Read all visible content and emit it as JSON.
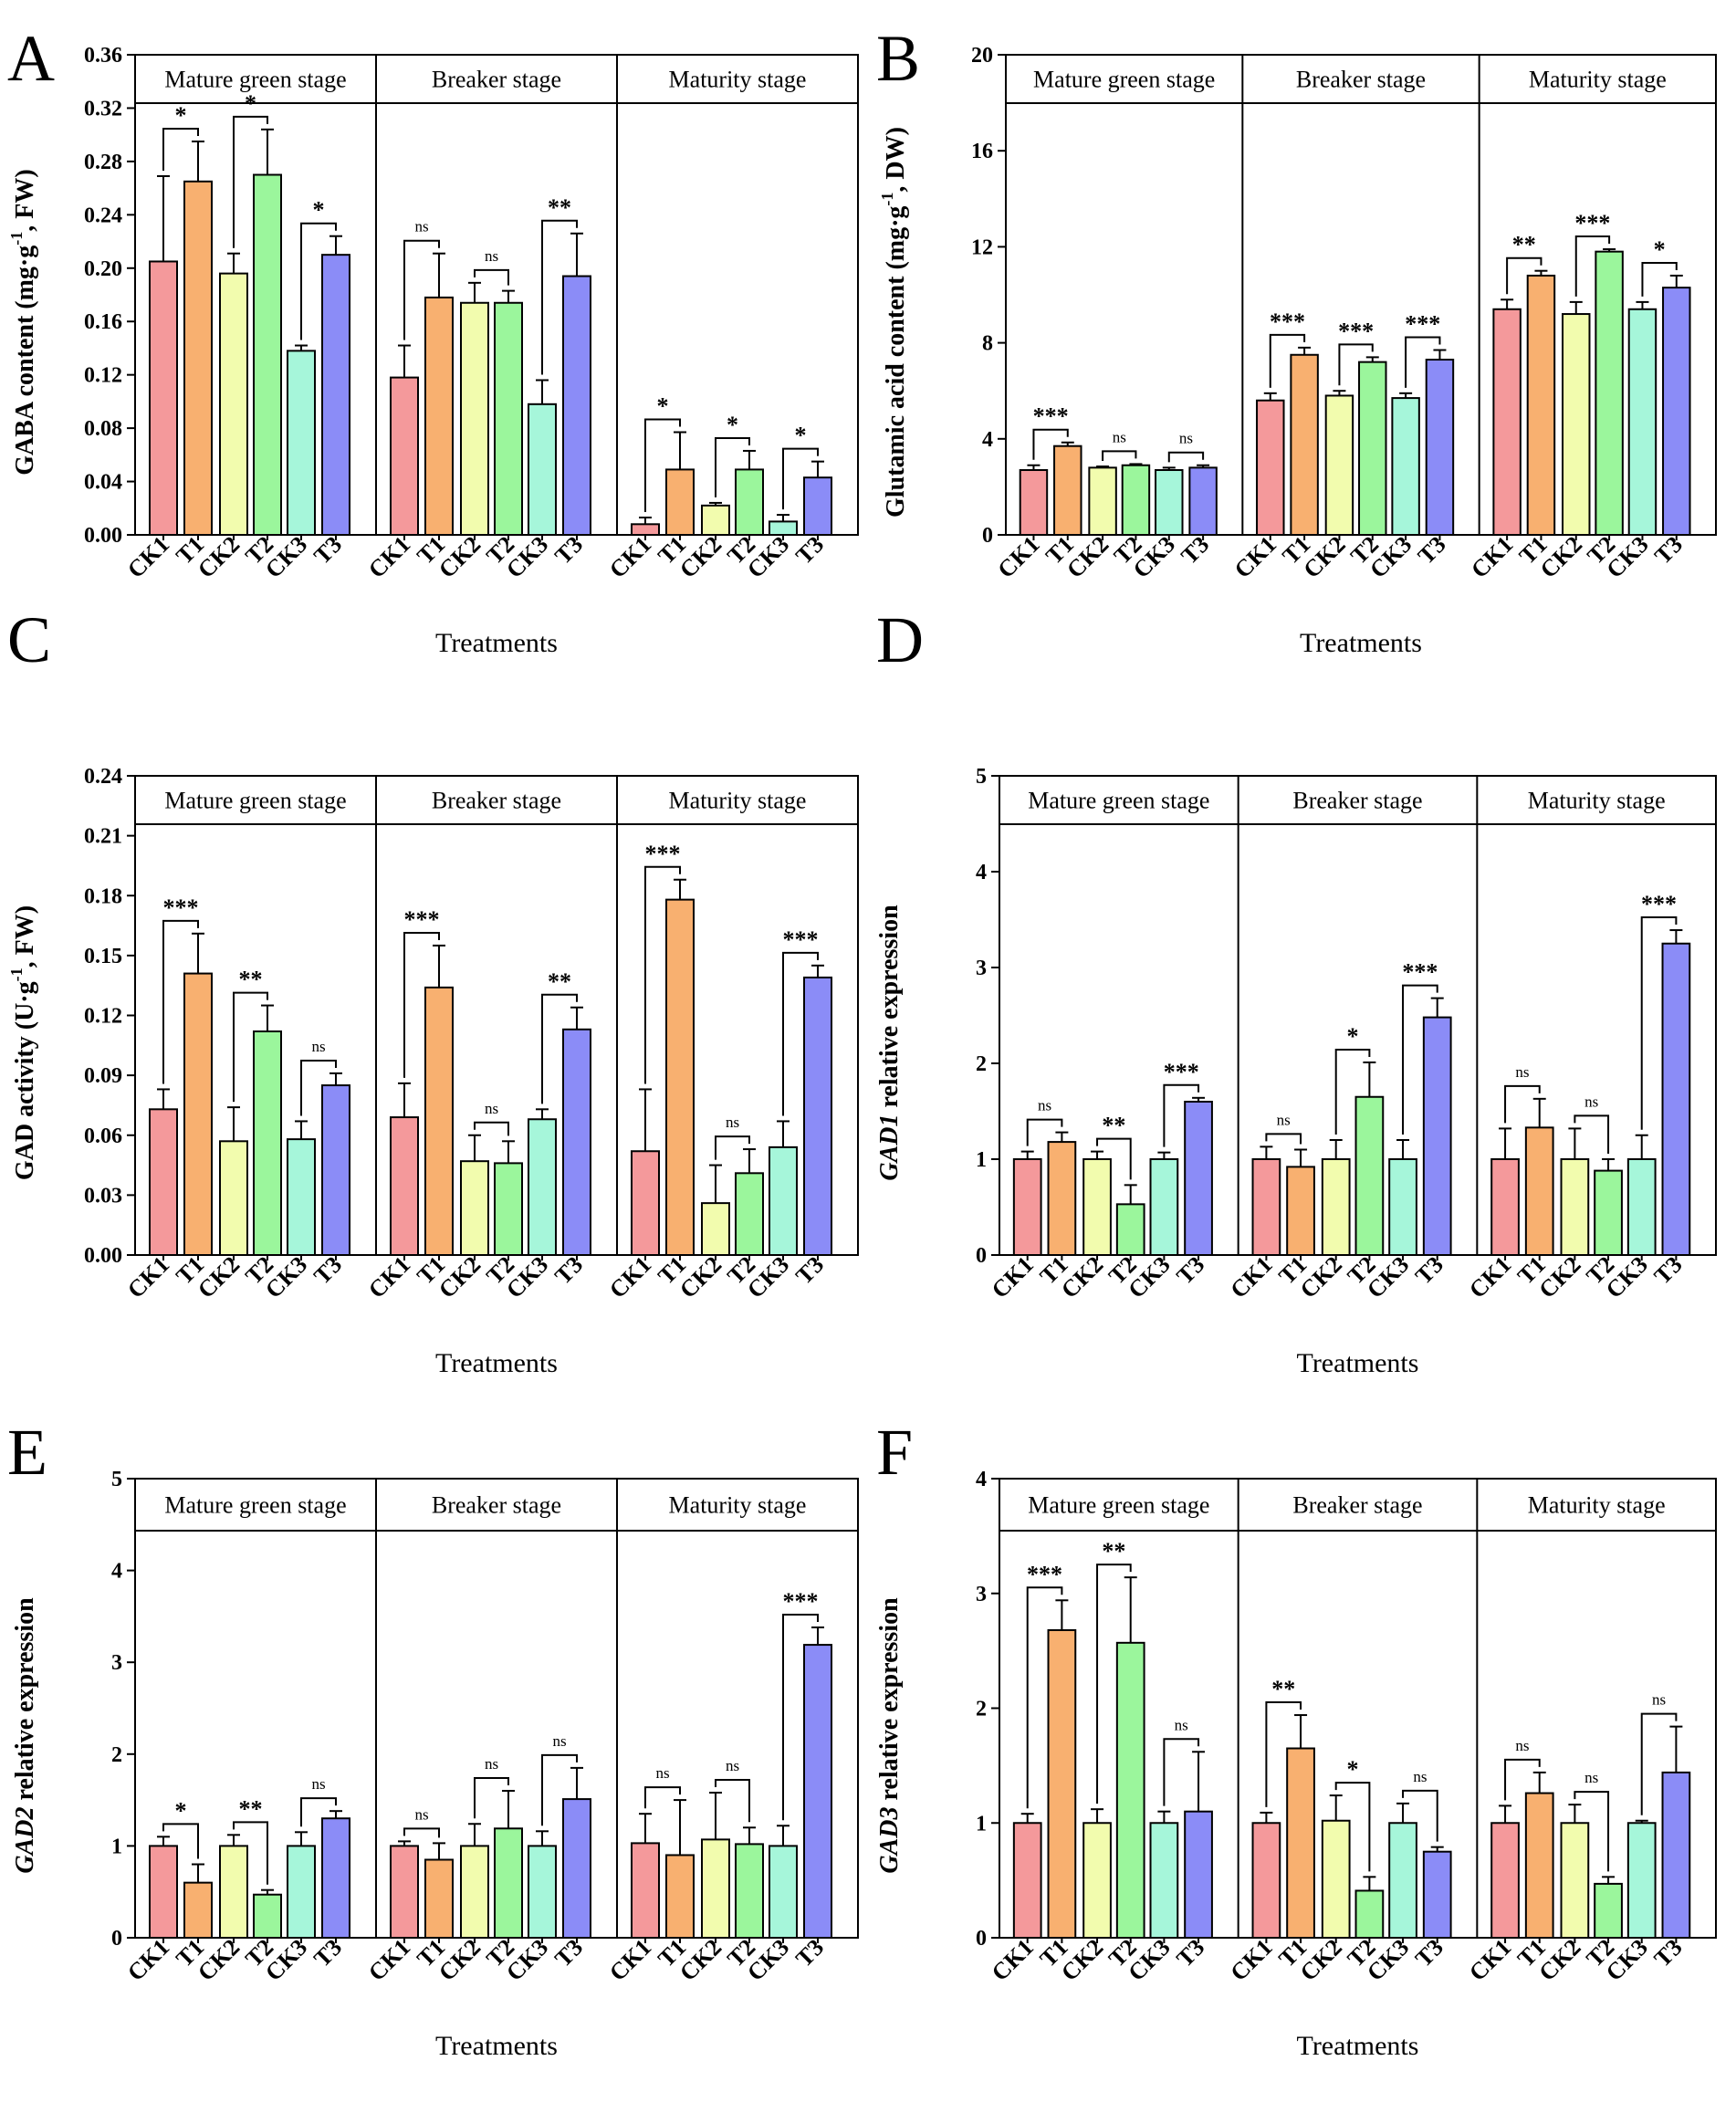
{
  "treatments": [
    "CK1",
    "T1",
    "CK2",
    "T2",
    "CK3",
    "T3"
  ],
  "stages": [
    "Mature green stage",
    "Breaker stage",
    "Maturity  stage"
  ],
  "colors": [
    "#F4999B",
    "#F8B070",
    "#F2FCAE",
    "#9BF69C",
    "#A6F6DA",
    "#8B8CF7"
  ],
  "chart_data": [
    {
      "panel": "A",
      "type": "bar",
      "ylabel_pre": "",
      "ylabel_italic": "",
      "ylabel_post": "GABA content (mg·g",
      "ylabel_sup": "-1",
      "ylabel_end": ", FW)",
      "xlabel": "Treatments",
      "ylim": [
        0,
        0.36
      ],
      "yticks": [
        "0.00",
        "0.04",
        "0.08",
        "0.12",
        "0.16",
        "0.20",
        "0.24",
        "0.28",
        "0.32",
        "0.36"
      ],
      "groups": [
        {
          "values": [
            0.205,
            0.265,
            0.196,
            0.27,
            0.138,
            0.21
          ],
          "errors": [
            0.064,
            0.03,
            0.015,
            0.034,
            0.004,
            0.014
          ],
          "sig": [
            "*",
            "*",
            "*"
          ]
        },
        {
          "values": [
            0.118,
            0.178,
            0.174,
            0.174,
            0.098,
            0.194
          ],
          "errors": [
            0.024,
            0.033,
            0.015,
            0.009,
            0.018,
            0.032
          ],
          "sig": [
            "ns",
            "ns",
            "**"
          ]
        },
        {
          "values": [
            0.008,
            0.049,
            0.022,
            0.049,
            0.01,
            0.043
          ],
          "errors": [
            0.005,
            0.028,
            0.002,
            0.014,
            0.005,
            0.012
          ],
          "sig": [
            "*",
            "*",
            "*"
          ]
        }
      ]
    },
    {
      "panel": "B",
      "type": "bar",
      "ylabel_pre": "",
      "ylabel_italic": "",
      "ylabel_post": "Glutamic acid content (mg·g",
      "ylabel_sup": "-1",
      "ylabel_end": ", DW)",
      "xlabel": "Treatments",
      "ylim": [
        0,
        20
      ],
      "yticks": [
        "0",
        "4",
        "8",
        "12",
        "16",
        "20"
      ],
      "groups": [
        {
          "values": [
            2.7,
            3.7,
            2.8,
            2.9,
            2.7,
            2.8
          ],
          "errors": [
            0.2,
            0.15,
            0.05,
            0.05,
            0.1,
            0.1
          ],
          "sig": [
            "***",
            "ns",
            "ns"
          ]
        },
        {
          "values": [
            5.6,
            7.5,
            5.8,
            7.2,
            5.7,
            7.3
          ],
          "errors": [
            0.3,
            0.3,
            0.2,
            0.2,
            0.2,
            0.4
          ],
          "sig": [
            "***",
            "***",
            "***"
          ]
        },
        {
          "values": [
            9.4,
            10.8,
            9.2,
            11.8,
            9.4,
            10.3
          ],
          "errors": [
            0.4,
            0.2,
            0.5,
            0.1,
            0.3,
            0.5
          ],
          "sig": [
            "**",
            "***",
            "*"
          ]
        }
      ]
    },
    {
      "panel": "C",
      "type": "bar",
      "ylabel_pre": "",
      "ylabel_italic": "",
      "ylabel_post": "GAD activity (U·g",
      "ylabel_sup": "-1",
      "ylabel_end": ", FW)",
      "xlabel": "Treatments",
      "ylim": [
        0,
        0.24
      ],
      "yticks": [
        "0.00",
        "0.03",
        "0.06",
        "0.09",
        "0.12",
        "0.15",
        "0.18",
        "0.21",
        "0.24"
      ],
      "groups": [
        {
          "values": [
            0.073,
            0.141,
            0.057,
            0.112,
            0.058,
            0.085
          ],
          "errors": [
            0.01,
            0.02,
            0.017,
            0.013,
            0.009,
            0.006
          ],
          "sig": [
            "***",
            "**",
            "ns"
          ]
        },
        {
          "values": [
            0.069,
            0.134,
            0.047,
            0.046,
            0.068,
            0.113
          ],
          "errors": [
            0.017,
            0.021,
            0.013,
            0.011,
            0.005,
            0.011
          ],
          "sig": [
            "***",
            "ns",
            "**"
          ]
        },
        {
          "values": [
            0.052,
            0.178,
            0.026,
            0.041,
            0.054,
            0.139
          ],
          "errors": [
            0.031,
            0.01,
            0.019,
            0.012,
            0.013,
            0.006
          ],
          "sig": [
            "***",
            "ns",
            "***"
          ]
        }
      ]
    },
    {
      "panel": "D",
      "type": "bar",
      "ylabel_pre": "",
      "ylabel_italic": "GAD1",
      "ylabel_post": " relative expression",
      "ylabel_sup": "",
      "ylabel_end": "",
      "xlabel": "Treatments",
      "ylim": [
        0,
        5
      ],
      "yticks": [
        "0",
        "1",
        "2",
        "3",
        "4",
        "5"
      ],
      "groups": [
        {
          "values": [
            1.0,
            1.18,
            1.0,
            0.53,
            1.0,
            1.6
          ],
          "errors": [
            0.08,
            0.1,
            0.08,
            0.2,
            0.07,
            0.04
          ],
          "sig": [
            "ns",
            "**",
            "***"
          ]
        },
        {
          "values": [
            1.0,
            0.92,
            1.0,
            1.65,
            1.0,
            2.48
          ],
          "errors": [
            0.13,
            0.18,
            0.2,
            0.36,
            0.2,
            0.2
          ],
          "sig": [
            "ns",
            "*",
            "***"
          ]
        },
        {
          "values": [
            1.0,
            1.33,
            1.0,
            0.88,
            1.0,
            3.25
          ],
          "errors": [
            0.32,
            0.3,
            0.32,
            0.12,
            0.25,
            0.14
          ],
          "sig": [
            "ns",
            "ns",
            "***"
          ]
        }
      ]
    },
    {
      "panel": "E",
      "type": "bar",
      "ylabel_pre": "",
      "ylabel_italic": "GAD2",
      "ylabel_post": " relative expression",
      "ylabel_sup": "",
      "ylabel_end": "",
      "xlabel": "Treatments",
      "ylim": [
        0,
        5
      ],
      "yticks": [
        "0",
        "1",
        "2",
        "3",
        "4",
        "5"
      ],
      "groups": [
        {
          "values": [
            1.0,
            0.6,
            1.0,
            0.47,
            1.0,
            1.3
          ],
          "errors": [
            0.1,
            0.2,
            0.12,
            0.05,
            0.15,
            0.08
          ],
          "sig": [
            "*",
            "**",
            "ns"
          ]
        },
        {
          "values": [
            1.0,
            0.85,
            1.0,
            1.19,
            1.0,
            1.51
          ],
          "errors": [
            0.05,
            0.18,
            0.24,
            0.41,
            0.16,
            0.34
          ],
          "sig": [
            "ns",
            "ns",
            "ns"
          ]
        },
        {
          "values": [
            1.03,
            0.9,
            1.07,
            1.02,
            1.0,
            3.19
          ],
          "errors": [
            0.32,
            0.6,
            0.51,
            0.18,
            0.22,
            0.19
          ],
          "sig": [
            "ns",
            "ns",
            "***"
          ]
        }
      ]
    },
    {
      "panel": "F",
      "type": "bar",
      "ylabel_pre": "",
      "ylabel_italic": "GAD3",
      "ylabel_post": " relative expression",
      "ylabel_sup": "",
      "ylabel_end": "",
      "xlabel": "Treatments",
      "ylim": [
        0,
        4
      ],
      "yticks": [
        "0",
        "1",
        "2",
        "3",
        "4"
      ],
      "groups": [
        {
          "values": [
            1.0,
            2.68,
            1.0,
            2.57,
            1.0,
            1.1
          ],
          "errors": [
            0.08,
            0.26,
            0.12,
            0.57,
            0.1,
            0.52
          ],
          "sig": [
            "***",
            "**",
            "ns"
          ]
        },
        {
          "values": [
            1.0,
            1.65,
            1.02,
            0.41,
            1.0,
            0.75
          ],
          "errors": [
            0.09,
            0.29,
            0.22,
            0.12,
            0.17,
            0.04
          ],
          "sig": [
            "**",
            "*",
            "ns"
          ]
        },
        {
          "values": [
            1.0,
            1.26,
            1.0,
            0.47,
            1.0,
            1.44
          ],
          "errors": [
            0.15,
            0.18,
            0.16,
            0.06,
            0.02,
            0.4
          ],
          "sig": [
            "ns",
            "ns",
            "ns"
          ]
        }
      ]
    }
  ]
}
